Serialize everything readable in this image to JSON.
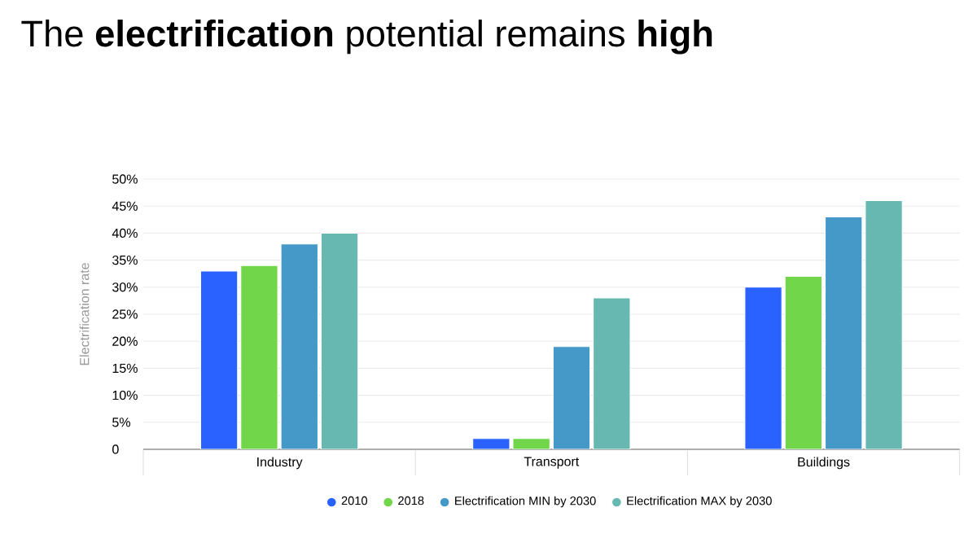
{
  "chart_data": {
    "type": "bar",
    "title": "The **electrification** potential remains **high**",
    "ylabel": "Electrification rate",
    "categories": [
      "Industry",
      "Transport",
      "Buildings"
    ],
    "series": [
      {
        "name": "2010",
        "color": "#2962ff",
        "values": [
          33,
          2,
          30
        ]
      },
      {
        "name": "2018",
        "color": "#72d64a",
        "values": [
          34,
          2,
          32
        ]
      },
      {
        "name": "Electrification MIN by 2030",
        "color": "#4499c8",
        "values": [
          38,
          19,
          43
        ]
      },
      {
        "name": "Electrification MAX by 2030",
        "color": "#66b8b0",
        "values": [
          40,
          28,
          46
        ]
      }
    ],
    "ylim": [
      0,
      50
    ],
    "yticks": [
      0,
      {
        "value": 5,
        "label": "5%"
      },
      {
        "value": 10,
        "label": "10%"
      },
      {
        "value": 15,
        "label": "15%"
      },
      {
        "value": 20,
        "label": "20%"
      },
      {
        "value": 25,
        "label": "25%"
      },
      {
        "value": 30,
        "label": "30%"
      },
      {
        "value": 35,
        "label": "35%"
      },
      {
        "value": 40,
        "label": "40%"
      },
      {
        "value": 45,
        "label": "45%"
      },
      {
        "value": 50,
        "label": "50%"
      }
    ],
    "grid": "y",
    "legend": "bottom"
  }
}
